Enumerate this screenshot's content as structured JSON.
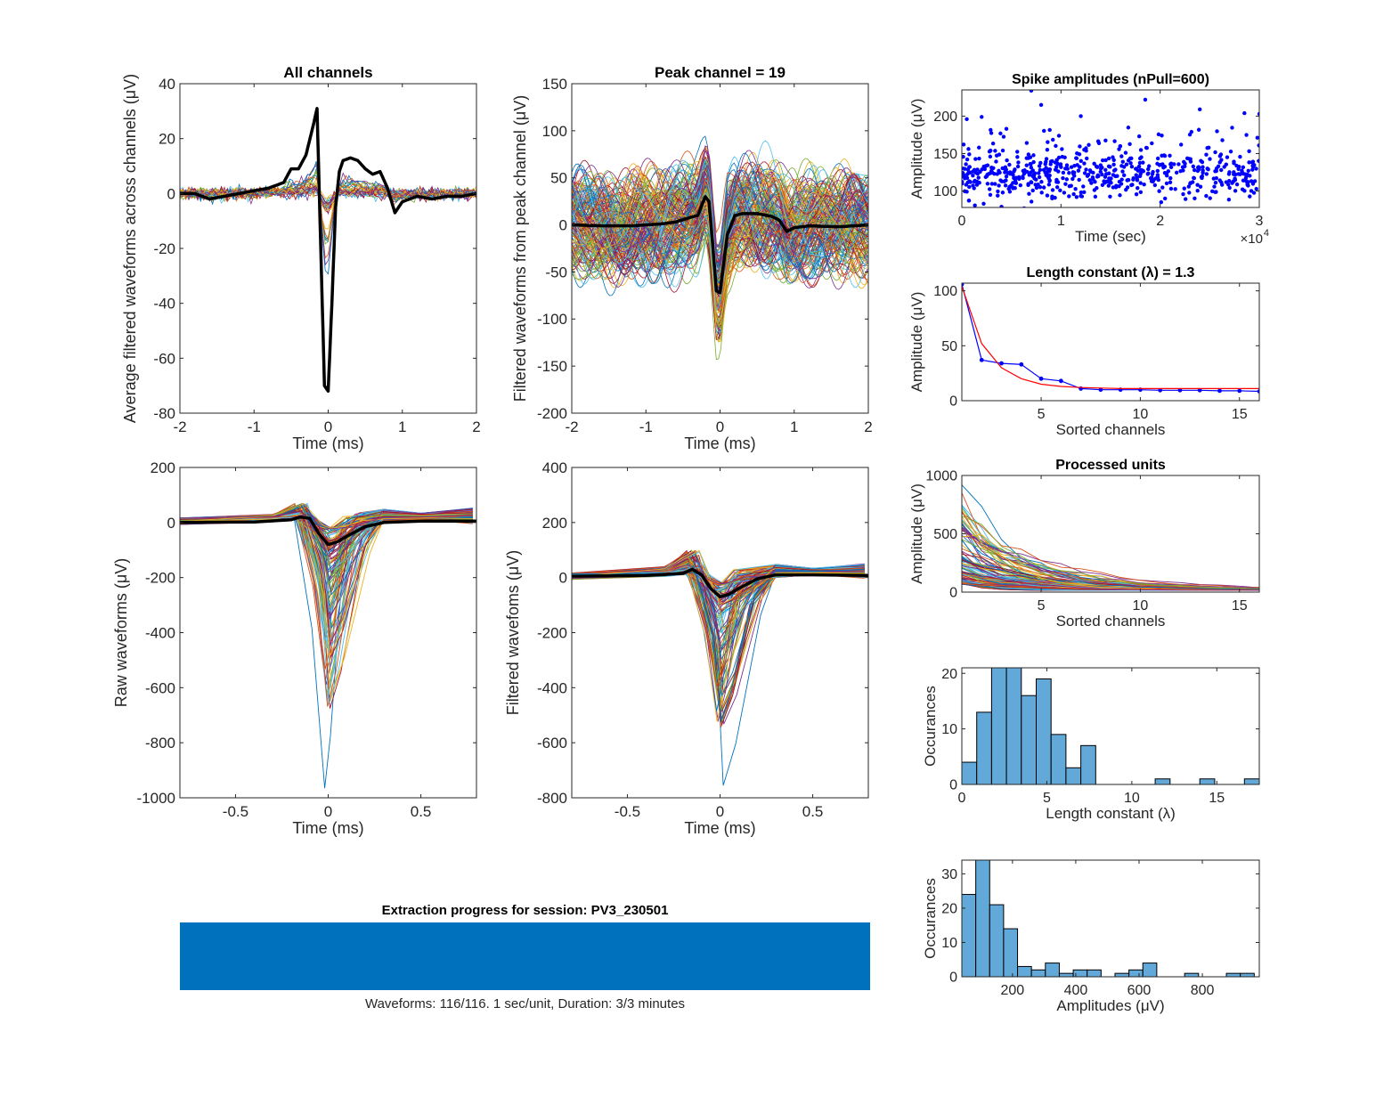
{
  "chart_data": [
    {
      "id": "all-channels",
      "type": "line",
      "title": "All channels",
      "xlabel": "Time (ms)",
      "ylabel": "Average filtered waveforms across channels (μV)",
      "xlim": [
        -2,
        2
      ],
      "ylim": [
        -80,
        40
      ],
      "xticks": [
        -2,
        -1,
        0,
        1,
        2
      ],
      "yticks": [
        -80,
        -60,
        -40,
        -20,
        0,
        20,
        40
      ],
      "mean_trace": {
        "x": [
          -2,
          -1.8,
          -1.6,
          -1.4,
          -1.2,
          -1,
          -0.8,
          -0.6,
          -0.5,
          -0.4,
          -0.3,
          -0.2,
          -0.15,
          -0.1,
          -0.05,
          0,
          0.05,
          0.1,
          0.15,
          0.2,
          0.3,
          0.4,
          0.5,
          0.6,
          0.7,
          0.8,
          0.9,
          1,
          1.2,
          1.4,
          1.6,
          1.8,
          2
        ],
        "y": [
          0,
          0,
          -2,
          -1,
          0,
          1,
          2,
          4,
          9,
          9,
          14,
          25,
          31,
          -20,
          -70,
          -72,
          -40,
          -5,
          8,
          12,
          13,
          12,
          9,
          7,
          8,
          2,
          -7,
          -3,
          -1,
          -2,
          -1,
          -1,
          0
        ]
      },
      "n_channel_traces": 32,
      "mean_color": "#000000"
    },
    {
      "id": "peak-channel",
      "type": "line",
      "title": "Peak channel = 19",
      "xlabel": "Time (ms)",
      "ylabel": "Filtered waveforms from peak channel (μV)",
      "xlim": [
        -2,
        2
      ],
      "ylim": [
        -200,
        150
      ],
      "xticks": [
        -2,
        -1,
        0,
        1,
        2
      ],
      "yticks": [
        -200,
        -150,
        -100,
        -50,
        0,
        50,
        100,
        150
      ],
      "mean_trace": {
        "x": [
          -2,
          -1.6,
          -1.2,
          -0.8,
          -0.6,
          -0.4,
          -0.3,
          -0.2,
          -0.15,
          -0.1,
          -0.05,
          0,
          0.05,
          0.1,
          0.2,
          0.3,
          0.5,
          0.7,
          0.8,
          0.9,
          1,
          1.2,
          1.6,
          2
        ],
        "y": [
          0,
          -1,
          -1,
          1,
          3,
          8,
          10,
          30,
          25,
          -20,
          -70,
          -72,
          -40,
          -10,
          10,
          12,
          12,
          9,
          5,
          -7,
          -3,
          -1,
          -2,
          0
        ]
      },
      "n_spike_traces": 600,
      "noise_range": [
        -150,
        120
      ],
      "mean_color": "#000000"
    },
    {
      "id": "raw-waveforms",
      "type": "line",
      "title": "",
      "xlabel": "Time (ms)",
      "ylabel": "Raw waveforms (μV)",
      "xlim": [
        -0.8,
        0.8
      ],
      "ylim": [
        -1000,
        200
      ],
      "xticks": [
        -0.5,
        0,
        0.5
      ],
      "yticks": [
        -1000,
        -800,
        -600,
        -400,
        -200,
        0,
        200
      ],
      "mean_trace": {
        "x": [
          -0.8,
          -0.4,
          -0.2,
          -0.15,
          -0.1,
          -0.05,
          0,
          0.05,
          0.1,
          0.2,
          0.3,
          0.5,
          0.8
        ],
        "y": [
          0,
          2,
          10,
          20,
          15,
          -40,
          -80,
          -70,
          -50,
          -15,
          0,
          5,
          5
        ]
      },
      "min_trough": -965,
      "n_unit_traces": 116,
      "mean_color": "#000000"
    },
    {
      "id": "filtered-waveforms",
      "type": "line",
      "title": "",
      "xlabel": "Time (ms)",
      "ylabel": "Filtered wavefoms (μV)",
      "xlim": [
        -0.8,
        0.8
      ],
      "ylim": [
        -800,
        400
      ],
      "xticks": [
        -0.5,
        0,
        0.5
      ],
      "yticks": [
        -800,
        -600,
        -400,
        -200,
        0,
        200,
        400
      ],
      "mean_trace": {
        "x": [
          -0.8,
          -0.4,
          -0.2,
          -0.15,
          -0.1,
          -0.05,
          0,
          0.05,
          0.1,
          0.2,
          0.3,
          0.5,
          0.8
        ],
        "y": [
          5,
          8,
          15,
          30,
          10,
          -40,
          -70,
          -60,
          -40,
          -5,
          10,
          10,
          8
        ]
      },
      "min_trough": -755,
      "n_unit_traces": 116,
      "mean_color": "#000000"
    },
    {
      "id": "spike-amplitudes",
      "type": "scatter",
      "title": "Spike amplitudes (nPull=600)",
      "xlabel": "Time (sec)",
      "ylabel": "Amplitude (μV)",
      "x_exponent_label": "×10^4",
      "xlim": [
        0,
        3
      ],
      "ylim": [
        78,
        235
      ],
      "xticks": [
        0,
        1,
        2,
        3
      ],
      "yticks": [
        100,
        150,
        200
      ],
      "n_points": 600,
      "typical_range": [
        90,
        160
      ],
      "outliers": [
        [
          0.7,
          234
        ],
        [
          0.8,
          215
        ],
        [
          1.85,
          222
        ],
        [
          1.2,
          200
        ],
        [
          2.4,
          209
        ],
        [
          0.05,
          196
        ],
        [
          0.2,
          199
        ],
        [
          2.85,
          204
        ],
        [
          3.0,
          203
        ],
        [
          0.4,
          79
        ],
        [
          0.22,
          83
        ]
      ],
      "color": "#0000FF"
    },
    {
      "id": "length-constant",
      "type": "line",
      "title": "Length constant (λ) = 1.3",
      "xlabel": "Sorted channels",
      "ylabel": "Amplitude (μV)",
      "xlim": [
        1,
        16
      ],
      "ylim": [
        0,
        107
      ],
      "xticks": [
        5,
        10,
        15
      ],
      "yticks": [
        0,
        50,
        100
      ],
      "series": [
        {
          "name": "measured",
          "color": "#0000FF",
          "markers": true,
          "x": [
            1,
            2,
            3,
            4,
            5,
            6,
            7,
            8,
            9,
            10,
            11,
            12,
            13,
            14,
            15,
            16
          ],
          "y": [
            106,
            37,
            34,
            33,
            20,
            18,
            11,
            10,
            10,
            10,
            9.5,
            9.5,
            9.5,
            9,
            9,
            8.5
          ]
        },
        {
          "name": "fit",
          "color": "#FF0000",
          "markers": false,
          "x": [
            1,
            2,
            3,
            4,
            5,
            6,
            7,
            8,
            9,
            10,
            11,
            12,
            13,
            14,
            15,
            16
          ],
          "y": [
            104,
            52,
            30,
            20,
            15,
            13,
            12,
            11.5,
            11,
            11,
            11,
            11,
            11,
            11,
            11,
            11
          ]
        }
      ]
    },
    {
      "id": "processed-units",
      "type": "line",
      "title": "Processed units",
      "xlabel": "Sorted channels",
      "ylabel": "Amplitude (μV)",
      "xlim": [
        1,
        16
      ],
      "ylim": [
        0,
        1000
      ],
      "xticks": [
        5,
        10,
        15
      ],
      "yticks": [
        0,
        500,
        1000
      ],
      "n_unit_traces": 116,
      "max_first_channel": 980
    },
    {
      "id": "length-constant-hist",
      "type": "bar",
      "title": "",
      "xlabel": "Length constant (λ)",
      "ylabel": "Occurances",
      "xlim": [
        0,
        17.5
      ],
      "ylim": [
        0,
        21
      ],
      "xticks": [
        0,
        5,
        10,
        15
      ],
      "yticks": [
        0,
        10,
        20
      ],
      "bin_width": 0.875,
      "bin_start": 0,
      "values": [
        4,
        13,
        21,
        21,
        16,
        19,
        9,
        3,
        7,
        0,
        0,
        0,
        0,
        1,
        0,
        0,
        1,
        0,
        0,
        1
      ],
      "color": "#62A8D8"
    },
    {
      "id": "amplitudes-hist",
      "type": "bar",
      "title": "",
      "xlabel": "Amplitudes (μV)",
      "ylabel": "Occurances",
      "xlim": [
        40,
        980
      ],
      "ylim": [
        0,
        34
      ],
      "xticks": [
        200,
        400,
        600,
        800
      ],
      "yticks": [
        0,
        10,
        20,
        30
      ],
      "bin_width": 44,
      "bin_start": 40,
      "values": [
        24,
        34,
        21,
        14,
        3,
        2,
        4,
        1,
        2,
        2,
        0,
        1,
        2,
        4,
        0,
        0,
        1,
        0,
        0,
        1,
        1
      ],
      "color": "#62A8D8"
    }
  ],
  "progress": {
    "title": "Extraction progress for session: PV3_230501",
    "fraction": 1.0,
    "status": "Waveforms: 116/116. 1 sec/unit, Duration: 3/3 minutes",
    "color": "#0072BD"
  }
}
